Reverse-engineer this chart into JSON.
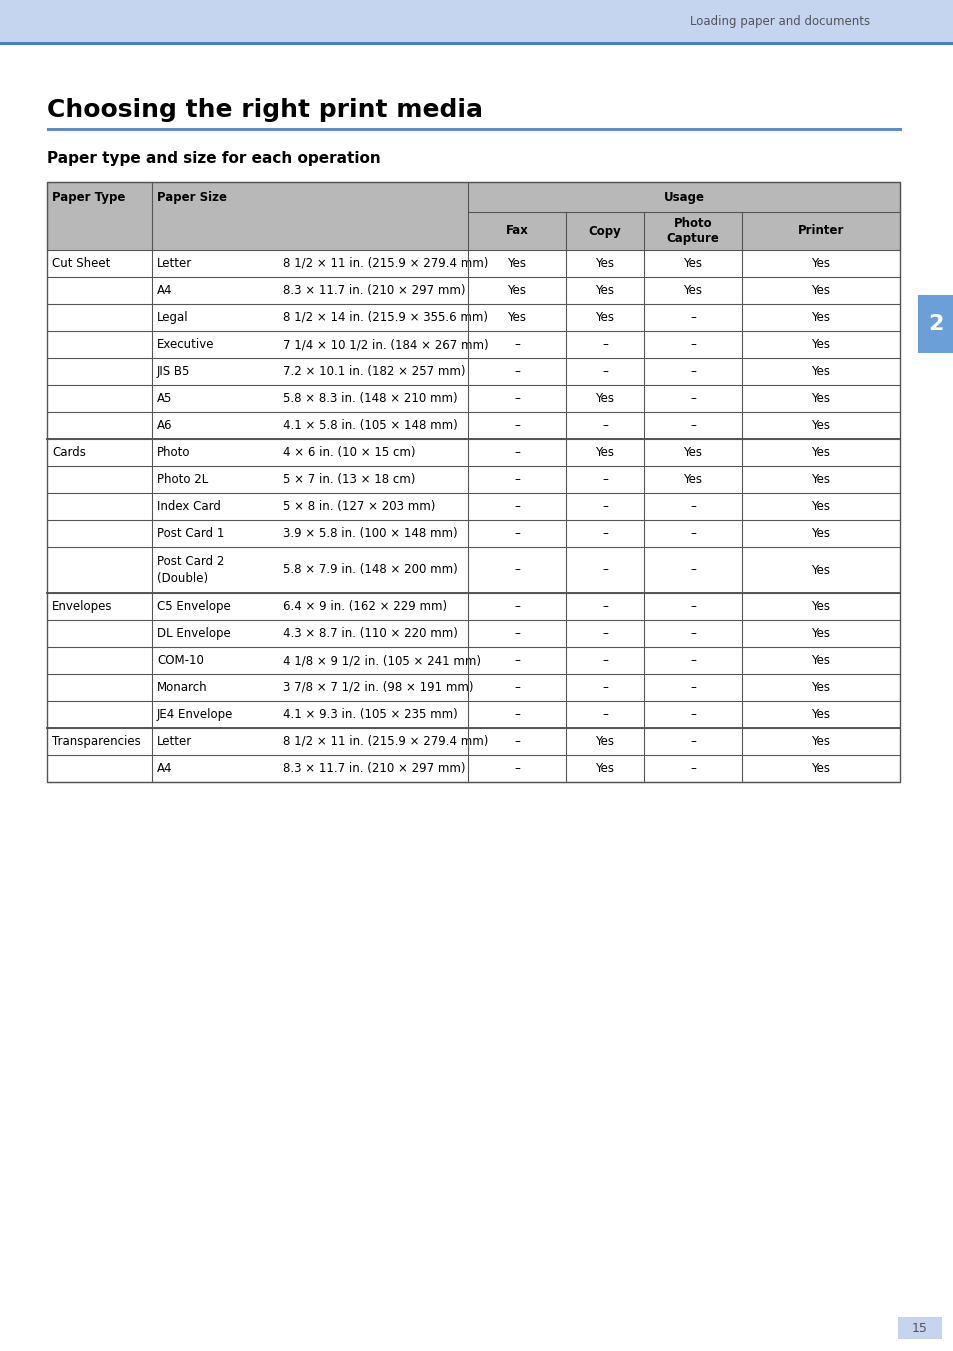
{
  "page_bg": "#ffffff",
  "header_bg": "#c5d5f0",
  "header_line_color": "#4a7cc7",
  "header_text": "Loading paper and documents",
  "title": "Choosing the right print media",
  "subtitle": "Paper type and size for each operation",
  "chapter_num": "2",
  "chapter_bg": "#6a9fd8",
  "page_num": "15",
  "table_header_bg": "#b8b8b8",
  "table_border": "#555555",
  "col_header1": "Paper Type",
  "col_header2": "Paper Size",
  "col_header3": "Usage",
  "usage_cols": [
    "Fax",
    "Copy",
    "Photo\nCapture",
    "Printer"
  ],
  "rows": [
    [
      "Cut Sheet",
      "Letter",
      "8 1/2 × 11 in. (215.9 × 279.4 mm)",
      "Yes",
      "Yes",
      "Yes",
      "Yes"
    ],
    [
      "",
      "A4",
      "8.3 × 11.7 in. (210 × 297 mm)",
      "Yes",
      "Yes",
      "Yes",
      "Yes"
    ],
    [
      "",
      "Legal",
      "8 1/2 × 14 in. (215.9 × 355.6 mm)",
      "Yes",
      "Yes",
      "–",
      "Yes"
    ],
    [
      "",
      "Executive",
      "7 1/4 × 10 1/2 in. (184 × 267 mm)",
      "–",
      "–",
      "–",
      "Yes"
    ],
    [
      "",
      "JIS B5",
      "7.2 × 10.1 in. (182 × 257 mm)",
      "–",
      "–",
      "–",
      "Yes"
    ],
    [
      "",
      "A5",
      "5.8 × 8.3 in. (148 × 210 mm)",
      "–",
      "Yes",
      "–",
      "Yes"
    ],
    [
      "",
      "A6",
      "4.1 × 5.8 in. (105 × 148 mm)",
      "–",
      "–",
      "–",
      "Yes"
    ],
    [
      "Cards",
      "Photo",
      "4 × 6 in. (10 × 15 cm)",
      "–",
      "Yes",
      "Yes",
      "Yes"
    ],
    [
      "",
      "Photo 2L",
      "5 × 7 in. (13 × 18 cm)",
      "–",
      "–",
      "Yes",
      "Yes"
    ],
    [
      "",
      "Index Card",
      "5 × 8 in. (127 × 203 mm)",
      "–",
      "–",
      "–",
      "Yes"
    ],
    [
      "",
      "Post Card 1",
      "3.9 × 5.8 in. (100 × 148 mm)",
      "–",
      "–",
      "–",
      "Yes"
    ],
    [
      "",
      "Post Card 2\n(Double)",
      "5.8 × 7.9 in. (148 × 200 mm)",
      "–",
      "–",
      "–",
      "Yes"
    ],
    [
      "Envelopes",
      "C5 Envelope",
      "6.4 × 9 in. (162 × 229 mm)",
      "–",
      "–",
      "–",
      "Yes"
    ],
    [
      "",
      "DL Envelope",
      "4.3 × 8.7 in. (110 × 220 mm)",
      "–",
      "–",
      "–",
      "Yes"
    ],
    [
      "",
      "COM-10",
      "4 1/8 × 9 1/2 in. (105 × 241 mm)",
      "–",
      "–",
      "–",
      "Yes"
    ],
    [
      "",
      "Monarch",
      "3 7/8 × 7 1/2 in. (98 × 191 mm)",
      "–",
      "–",
      "–",
      "Yes"
    ],
    [
      "",
      "JE4 Envelope",
      "4.1 × 9.3 in. (105 × 235 mm)",
      "–",
      "–",
      "–",
      "Yes"
    ],
    [
      "Transparencies",
      "Letter",
      "8 1/2 × 11 in. (215.9 × 279.4 mm)",
      "–",
      "Yes",
      "–",
      "Yes"
    ],
    [
      "",
      "A4",
      "8.3 × 11.7 in. (210 × 297 mm)",
      "–",
      "Yes",
      "–",
      "Yes"
    ]
  ],
  "group_starts": [
    0,
    7,
    12,
    17
  ],
  "group_names": [
    "Cut Sheet",
    "Cards",
    "Envelopes",
    "Transparencies"
  ]
}
